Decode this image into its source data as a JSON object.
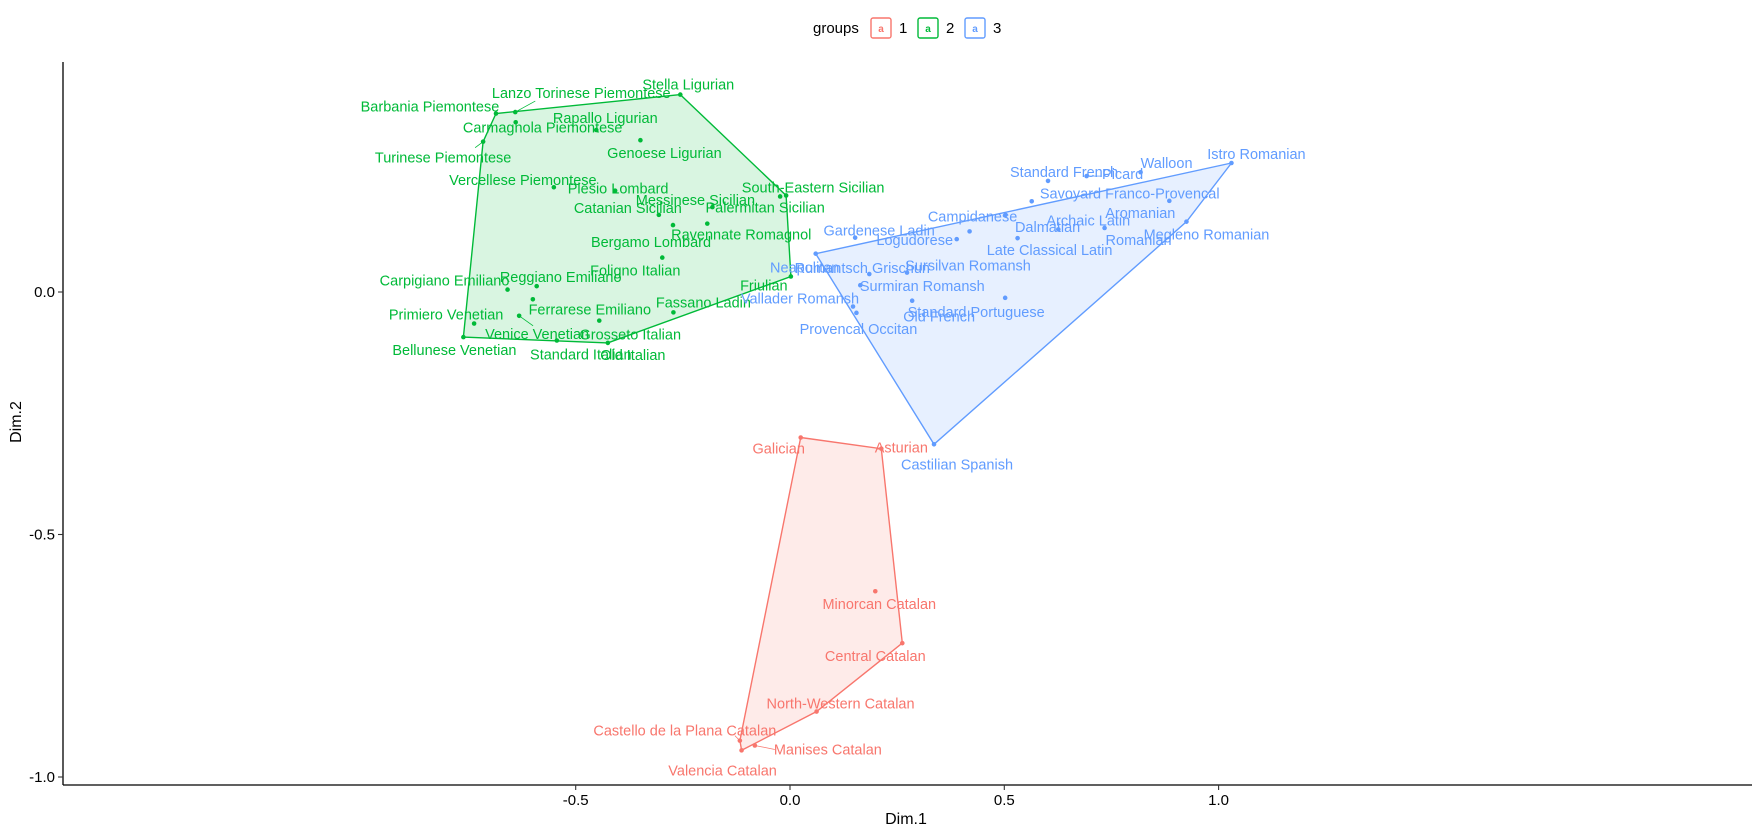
{
  "chart_data": {
    "type": "scatter",
    "xlabel": "Dim.1",
    "ylabel": "Dim.2",
    "xlim": [
      -0.85,
      1.12
    ],
    "ylim": [
      -1.02,
      0.47
    ],
    "x_ticks": [
      -0.5,
      0.0,
      0.5,
      1.0
    ],
    "x_tick_labels": [
      "-0.5",
      "0.0",
      "0.5",
      "1.0"
    ],
    "y_ticks": [
      0.0,
      -0.5,
      -1.0
    ],
    "y_tick_labels": [
      "0.0",
      "-0.5",
      "-1.0"
    ],
    "grid": false,
    "legend": {
      "title": "groups",
      "position": "top",
      "entries": [
        {
          "label": "1",
          "color": "#F8766D"
        },
        {
          "label": "2",
          "color": "#00BA38"
        },
        {
          "label": "3",
          "color": "#619CFF"
        }
      ]
    },
    "series": [
      {
        "name": "1",
        "color": "#F8766D",
        "hull": [
          [
            0.025,
            -0.3
          ],
          [
            0.213,
            -0.323
          ],
          [
            0.262,
            -0.724
          ],
          [
            0.062,
            -0.865
          ],
          [
            -0.113,
            -0.945
          ],
          [
            -0.117,
            -0.925
          ]
        ],
        "points": [
          {
            "label": "Galician",
            "x": 0.025,
            "y": -0.3
          },
          {
            "label": "Asturian",
            "x": 0.213,
            "y": -0.323
          },
          {
            "label": "Minorcan Catalan",
            "x": 0.199,
            "y": -0.617
          },
          {
            "label": "Central Catalan",
            "x": 0.262,
            "y": -0.724
          },
          {
            "label": "North-Western Catalan",
            "x": 0.062,
            "y": -0.865
          },
          {
            "label": "Castello de la Plana Catalan",
            "x": -0.117,
            "y": -0.925
          },
          {
            "label": "Manises Catalan",
            "x": -0.082,
            "y": -0.935
          },
          {
            "label": "Valencia Catalan",
            "x": -0.113,
            "y": -0.945
          }
        ]
      },
      {
        "name": "2",
        "color": "#00BA38",
        "hull": [
          [
            -0.256,
            0.407
          ],
          [
            -0.009,
            0.199
          ],
          [
            0.002,
            0.032
          ],
          [
            -0.425,
            -0.105
          ],
          [
            -0.762,
            -0.093
          ],
          [
            -0.716,
            0.31
          ],
          [
            -0.686,
            0.368
          ]
        ],
        "points": [
          {
            "label": "Barbania Piemontese",
            "x": -0.686,
            "y": 0.368
          },
          {
            "label": "Lanzo Torinese Piemontese",
            "x": -0.641,
            "y": 0.371
          },
          {
            "label": "Carmagnola Piemontese",
            "x": -0.64,
            "y": 0.35
          },
          {
            "label": "Turinese Piemontese",
            "x": -0.716,
            "y": 0.31
          },
          {
            "label": "Stella Ligurian",
            "x": -0.256,
            "y": 0.407
          },
          {
            "label": "Rapallo Ligurian",
            "x": -0.452,
            "y": 0.334
          },
          {
            "label": "Genoese Ligurian",
            "x": -0.349,
            "y": 0.313
          },
          {
            "label": "Vercellese Piemontese",
            "x": -0.551,
            "y": 0.216
          },
          {
            "label": "Plesio Lombard",
            "x": -0.408,
            "y": 0.209
          },
          {
            "label": "Catanian Sicilian",
            "x": -0.306,
            "y": 0.159
          },
          {
            "label": "Messinese Sicilian",
            "x": -0.181,
            "y": 0.175
          },
          {
            "label": "Bergamo Lombard",
            "x": -0.273,
            "y": 0.138
          },
          {
            "label": "Ravennate Romagnol",
            "x": -0.193,
            "y": 0.141
          },
          {
            "label": "South-Eastern Sicilian",
            "x": -0.009,
            "y": 0.199
          },
          {
            "label": "Palermitan Sicilian",
            "x": -0.023,
            "y": 0.197
          },
          {
            "label": "Foligno Italian",
            "x": -0.298,
            "y": 0.071
          },
          {
            "label": "Friulian",
            "x": 0.002,
            "y": 0.032
          },
          {
            "label": "Carpigiano Emiliano",
            "x": -0.659,
            "y": 0.005
          },
          {
            "label": "Reggiano Emiliano",
            "x": -0.591,
            "y": 0.012
          },
          {
            "label": "Ferrarese Emiliano",
            "x": -0.6,
            "y": -0.015
          },
          {
            "label": "Primiero Venetian",
            "x": -0.737,
            "y": -0.065
          },
          {
            "label": "Venice Venetian",
            "x": -0.632,
            "y": -0.049
          },
          {
            "label": "Fassano Ladin",
            "x": -0.272,
            "y": -0.042
          },
          {
            "label": "Grosseto Italian",
            "x": -0.445,
            "y": -0.059
          },
          {
            "label": "Bellunese Venetian",
            "x": -0.762,
            "y": -0.093
          },
          {
            "label": "Standard Italian",
            "x": -0.544,
            "y": -0.1
          },
          {
            "label": "Old Italian",
            "x": -0.425,
            "y": -0.105
          }
        ]
      },
      {
        "name": "3",
        "color": "#619CFF",
        "hull": [
          [
            1.03,
            0.266
          ],
          [
            0.06,
            0.079
          ],
          [
            0.336,
            -0.314
          ],
          [
            0.925,
            0.145
          ]
        ],
        "points": [
          {
            "label": "Istro Romanian",
            "x": 1.03,
            "y": 0.266
          },
          {
            "label": "Walloon",
            "x": 0.818,
            "y": 0.247
          },
          {
            "label": "Standard French",
            "x": 0.602,
            "y": 0.229
          },
          {
            "label": "Picard",
            "x": 0.692,
            "y": 0.239
          },
          {
            "label": "Savoyard Franco-Provencal",
            "x": 0.564,
            "y": 0.187
          },
          {
            "label": "Aromanian",
            "x": 0.885,
            "y": 0.188
          },
          {
            "label": "Archaic Latin",
            "x": 0.626,
            "y": 0.129
          },
          {
            "label": "Romanian",
            "x": 0.734,
            "y": 0.132
          },
          {
            "label": "Megleno Romanian",
            "x": 0.925,
            "y": 0.145
          },
          {
            "label": "Campidanese",
            "x": 0.419,
            "y": 0.125
          },
          {
            "label": "Dalmatian",
            "x": 0.503,
            "y": 0.159
          },
          {
            "label": "Logudorese",
            "x": 0.389,
            "y": 0.109
          },
          {
            "label": "Late Classical Latin",
            "x": 0.531,
            "y": 0.111
          },
          {
            "label": "Gardenese Ladin",
            "x": 0.152,
            "y": 0.112
          },
          {
            "label": "Neapolitan",
            "x": 0.06,
            "y": 0.079
          },
          {
            "label": "Rumantsch Grischun",
            "x": 0.185,
            "y": 0.037
          },
          {
            "label": "Sursilvan Romansh",
            "x": 0.273,
            "y": 0.04
          },
          {
            "label": "Surmiran Romansh",
            "x": 0.164,
            "y": 0.014
          },
          {
            "label": "Vallader Romansh",
            "x": 0.147,
            "y": -0.03
          },
          {
            "label": "Provencal Occitan",
            "x": 0.155,
            "y": -0.043
          },
          {
            "label": "Old French",
            "x": 0.285,
            "y": -0.018
          },
          {
            "label": "Standard Portuguese",
            "x": 0.502,
            "y": -0.012
          },
          {
            "label": "Castilian Spanish",
            "x": 0.336,
            "y": -0.314
          }
        ]
      }
    ]
  }
}
